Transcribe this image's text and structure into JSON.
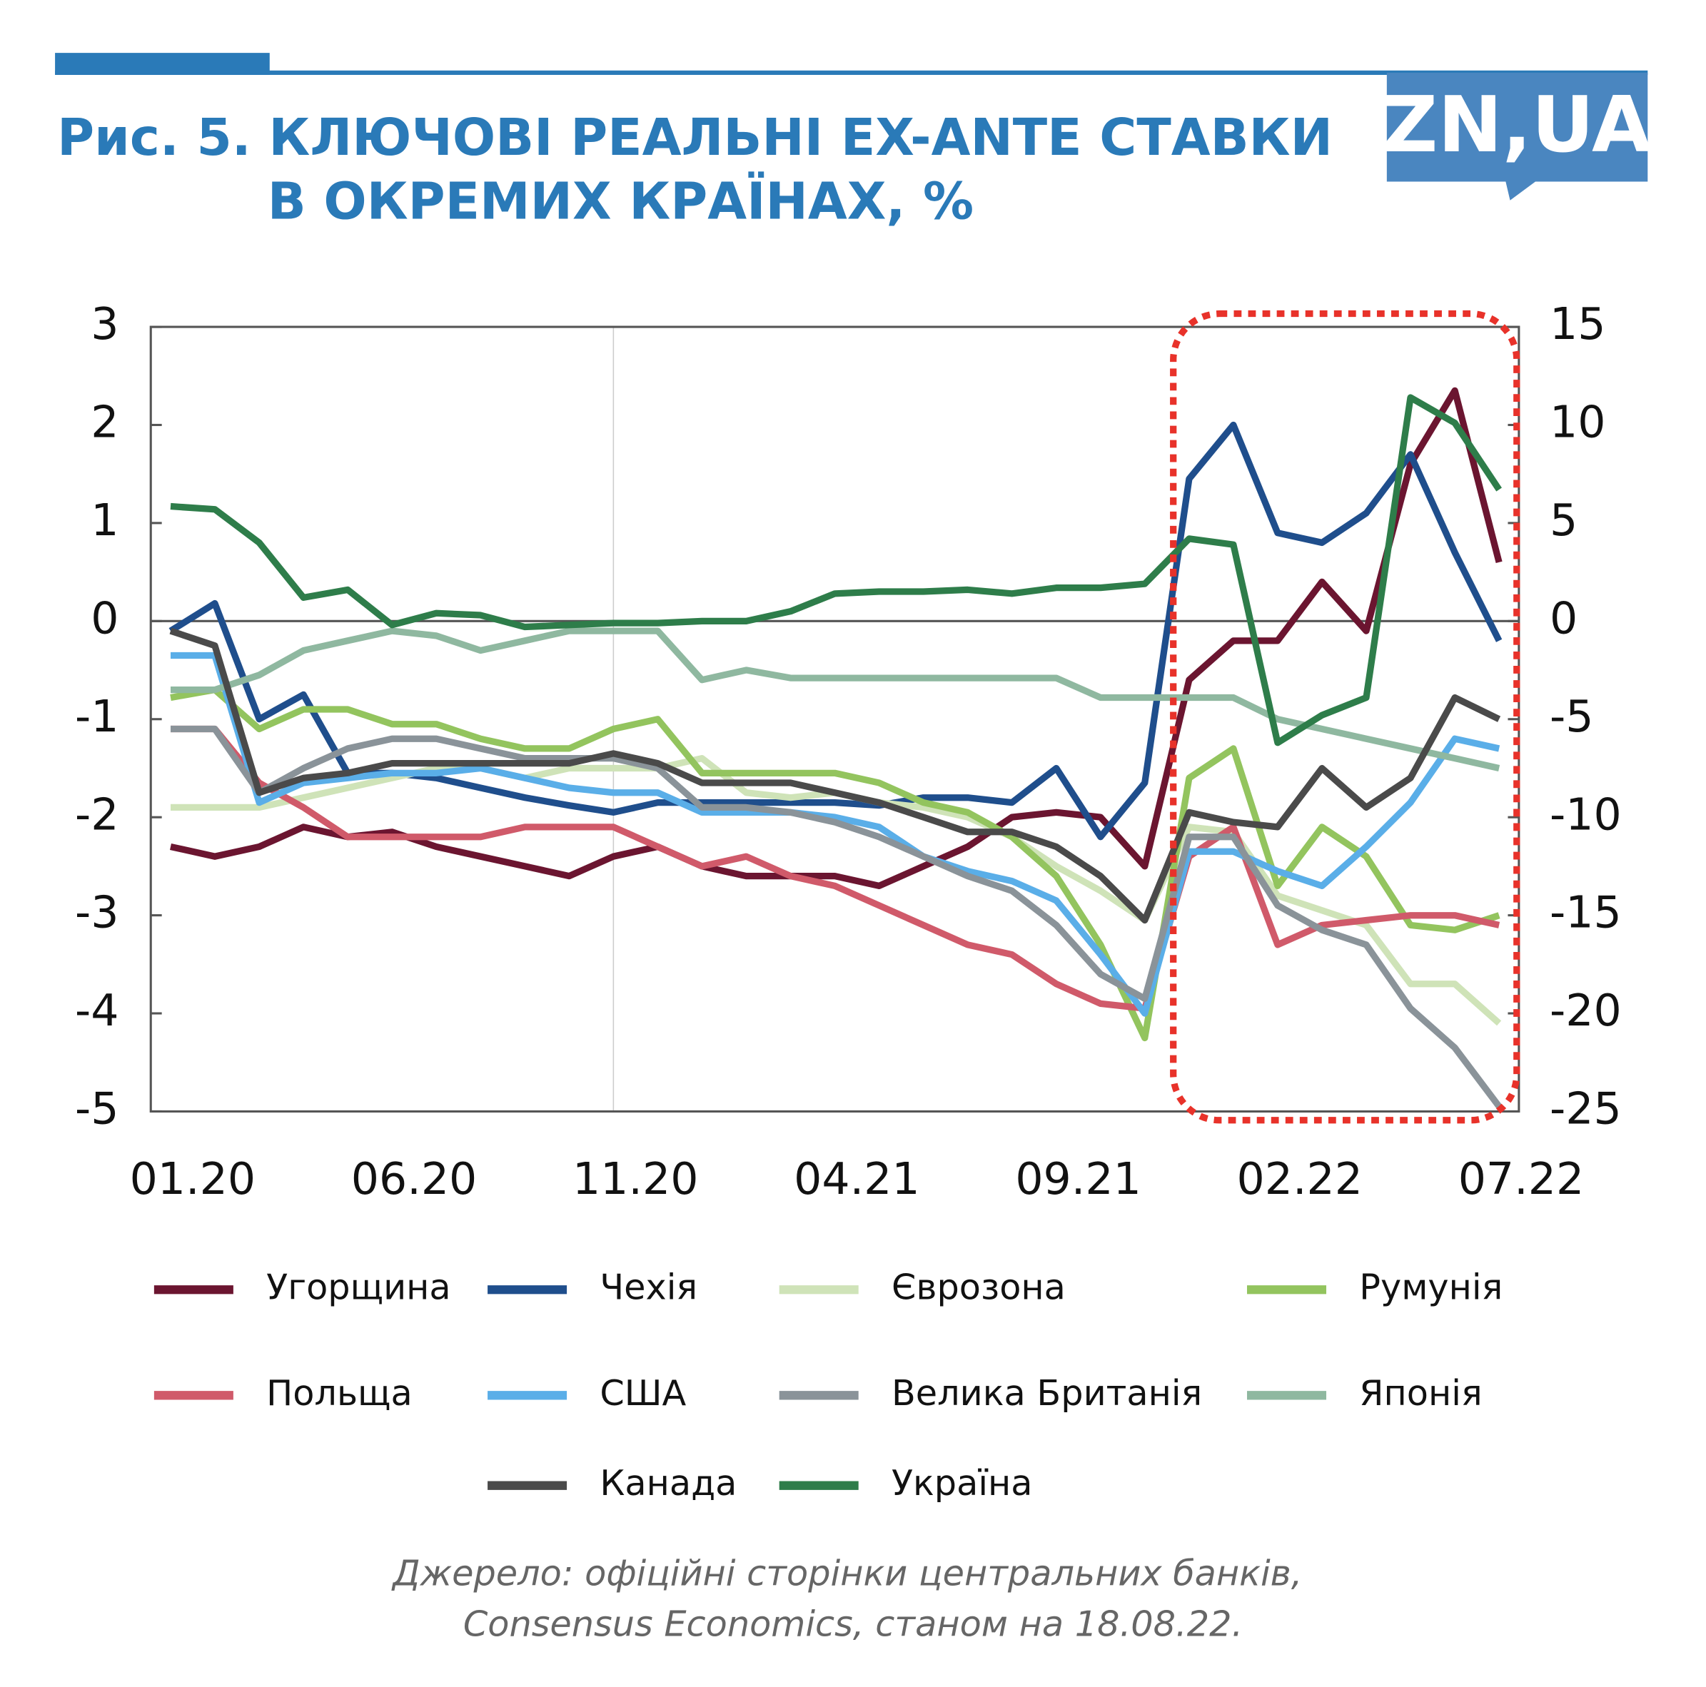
{
  "logo": "ZN,UA",
  "chart_data": {
    "type": "line",
    "title": [
      "Рис. 5. КЛЮЧОВІ РЕАЛЬНІ EX-ANTE СТАВКИ",
      "В ОКРЕМИХ КРАЇНАХ, %"
    ],
    "source": [
      "Джерело: офіційні сторінки центральних банків,",
      "Consensus Economics, станом на 18.08.22."
    ],
    "categories": [
      "01.20",
      null,
      null,
      null,
      null,
      "06.20",
      null,
      null,
      null,
      null,
      "11.20",
      null,
      null,
      null,
      null,
      "04.21",
      null,
      null,
      null,
      null,
      "09.21",
      null,
      null,
      null,
      null,
      "02.22",
      null,
      null,
      null,
      null,
      "07.22"
    ],
    "ylim": [
      -5,
      3
    ],
    "yticks": [
      -5,
      -4,
      -3,
      -2,
      -1,
      0,
      1,
      2,
      3
    ],
    "y2lim": [
      -25,
      15
    ],
    "y2ticks": [
      -25,
      -20,
      -15,
      -10,
      -5,
      0,
      5,
      10,
      15
    ],
    "series": [
      {
        "name": "Угорщина",
        "color": "#6b1530",
        "values": [
          -2.3,
          -2.4,
          -2.3,
          -2.1,
          -2.2,
          -2.15,
          -2.3,
          -2.4,
          -2.5,
          -2.6,
          -2.4,
          -2.3,
          -2.5,
          -2.6,
          -2.6,
          -2.6,
          -2.7,
          -2.5,
          -2.3,
          -2.0,
          -1.95,
          -2.0,
          -2.5,
          -0.6,
          -0.2,
          -0.2,
          0.4,
          -0.1,
          1.6,
          2.35,
          0.6
        ]
      },
      {
        "name": "Чехія",
        "color": "#1f4e8c",
        "values": [
          -0.1,
          0.18,
          -1.0,
          -0.75,
          -1.55,
          -1.55,
          -1.6,
          -1.7,
          -1.8,
          -1.88,
          -1.95,
          -1.85,
          -1.85,
          -1.85,
          -1.85,
          -1.85,
          -1.88,
          -1.8,
          -1.8,
          -1.85,
          -1.5,
          -2.2,
          -1.65,
          1.45,
          2.0,
          0.9,
          0.8,
          1.1,
          1.7,
          0.7,
          -0.2
        ]
      },
      {
        "name": "Єврозона",
        "color": "#cfe3b8",
        "values": [
          -1.9,
          -1.9,
          -1.9,
          -1.8,
          -1.7,
          -1.6,
          -1.5,
          -1.5,
          -1.6,
          -1.5,
          -1.5,
          -1.5,
          -1.4,
          -1.75,
          -1.8,
          -1.75,
          -1.85,
          -1.9,
          -2.0,
          -2.2,
          -2.5,
          -2.75,
          -3.05,
          -2.1,
          -2.15,
          -2.8,
          -2.95,
          -3.1,
          -3.7,
          -3.7,
          -4.1
        ]
      },
      {
        "name": "Румунія",
        "color": "#93c45e",
        "values": [
          -0.78,
          -0.7,
          -1.1,
          -0.9,
          -0.9,
          -1.05,
          -1.05,
          -1.2,
          -1.3,
          -1.3,
          -1.1,
          -1.0,
          -1.55,
          -1.55,
          -1.55,
          -1.55,
          -1.65,
          -1.85,
          -1.95,
          -2.2,
          -2.6,
          -3.3,
          -4.25,
          -1.6,
          -1.3,
          -2.7,
          -2.1,
          -2.4,
          -3.1,
          -3.15,
          -3.0
        ]
      },
      {
        "name": "Польща",
        "color": "#d05a6a",
        "values": [
          -1.1,
          -1.1,
          -1.65,
          -1.9,
          -2.2,
          -2.2,
          -2.2,
          -2.2,
          -2.1,
          -2.1,
          -2.1,
          -2.3,
          -2.5,
          -2.4,
          -2.6,
          -2.7,
          -2.9,
          -3.1,
          -3.3,
          -3.4,
          -3.7,
          -3.9,
          -3.95,
          -2.4,
          -2.1,
          -3.3,
          -3.1,
          -3.05,
          -3.0,
          -3.0,
          -3.1
        ]
      },
      {
        "name": "США",
        "color": "#5aaee8",
        "values": [
          -0.35,
          -0.35,
          -1.85,
          -1.65,
          -1.6,
          -1.55,
          -1.55,
          -1.5,
          -1.6,
          -1.7,
          -1.75,
          -1.75,
          -1.95,
          -1.95,
          -1.95,
          -2.0,
          -2.1,
          -2.4,
          -2.55,
          -2.65,
          -2.85,
          -3.4,
          -4.0,
          -2.35,
          -2.35,
          -2.55,
          -2.7,
          -2.3,
          -1.85,
          -1.2,
          -1.3
        ]
      },
      {
        "name": "Велика Британія",
        "color": "#8a9399",
        "values": [
          -1.1,
          -1.1,
          -1.75,
          -1.5,
          -1.3,
          -1.2,
          -1.2,
          -1.3,
          -1.4,
          -1.4,
          -1.4,
          -1.5,
          -1.9,
          -1.9,
          -1.95,
          -2.05,
          -2.2,
          -2.4,
          -2.6,
          -2.75,
          -3.1,
          -3.6,
          -3.85,
          -2.2,
          -2.2,
          -2.9,
          -3.15,
          -3.3,
          -3.95,
          -4.35,
          -4.95
        ]
      },
      {
        "name": "Японія",
        "color": "#8fb8a0",
        "values": [
          -0.7,
          -0.7,
          -0.55,
          -0.3,
          -0.2,
          -0.1,
          -0.15,
          -0.3,
          -0.2,
          -0.1,
          -0.1,
          -0.1,
          -0.6,
          -0.5,
          -0.58,
          -0.58,
          -0.58,
          -0.58,
          -0.58,
          -0.58,
          -0.58,
          -0.78,
          -0.78,
          -0.78,
          -0.78,
          -1.0,
          -1.1,
          -1.2,
          -1.3,
          -1.4,
          -1.5
        ]
      },
      {
        "name": "Канада",
        "color": "#4a4a4a",
        "values": [
          -0.1,
          -0.25,
          -1.75,
          -1.6,
          -1.55,
          -1.45,
          -1.45,
          -1.45,
          -1.45,
          -1.45,
          -1.35,
          -1.45,
          -1.65,
          -1.65,
          -1.65,
          -1.75,
          -1.85,
          -2.0,
          -2.15,
          -2.15,
          -2.3,
          -2.6,
          -3.05,
          -1.95,
          -2.05,
          -2.1,
          -1.5,
          -1.9,
          -1.6,
          -0.78,
          -1.0
        ]
      },
      {
        "name": "Україна",
        "color": "#2e7d4a",
        "axis": "y2",
        "values": [
          5.85,
          5.7,
          4.0,
          1.2,
          1.6,
          -0.2,
          0.4,
          0.3,
          -0.3,
          -0.2,
          -0.1,
          -0.1,
          0,
          0,
          0.5,
          1.4,
          1.5,
          1.5,
          1.6,
          1.4,
          1.7,
          1.7,
          1.9,
          4.2,
          3.9,
          -6.2,
          -4.8,
          -3.9,
          11.4,
          10.1,
          6.7
        ]
      }
    ]
  }
}
